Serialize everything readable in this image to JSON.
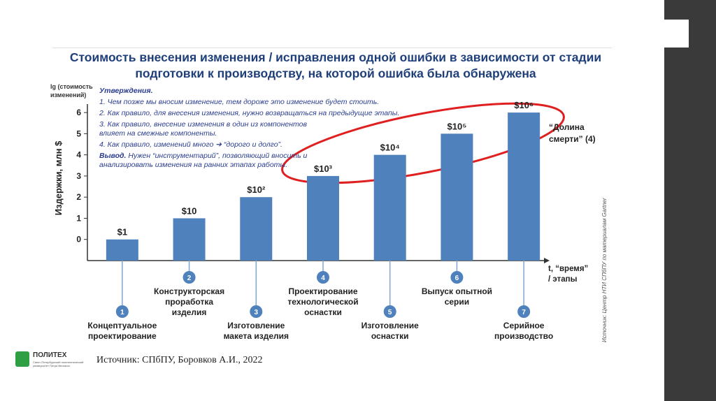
{
  "chart_data": {
    "type": "bar",
    "title": "Стоимость внесения изменения / исправления одной ошибки в зависимости от стадии подготовки к производству, на которой ошибка была обнаружена",
    "y_axis_label": "Издержки, млн $",
    "y_axis_note": "lg (стоимость изменений)",
    "x_axis_label": "t, “время” / этапы",
    "categories": [
      "Концептуальное проектирование",
      "Конструкторская проработка изделия",
      "Изготовление макета изделия",
      "Проектирование технологической оснастки",
      "Изготовление оснастки",
      "Выпуск опытной серии",
      "Серийное производство"
    ],
    "category_numbers": [
      1,
      2,
      3,
      4,
      5,
      6,
      7
    ],
    "values": [
      0,
      1,
      2,
      3,
      4,
      5,
      6
    ],
    "value_labels": [
      "$1",
      "$10",
      "$10²",
      "$10³",
      "$10⁴",
      "$10⁵",
      "$10⁶"
    ],
    "color": "#4f81bd",
    "ylim": [
      -1,
      6.4
    ],
    "yticks": [
      0,
      1,
      2,
      3,
      4,
      5,
      6
    ],
    "annotation": "“Долина смерти” (4)",
    "statements_heading": "Утверждения.",
    "statements": [
      "1. Чем позже мы вносим изменение, тем дороже это изменение будет стоить.",
      "2. Как правило, для внесения изменения, нужно возвращаться на предыдущие этапы.",
      "3. Как правило, внесение изменения в один из компонентов влияет на смежные компоненты.",
      "4. Как правило, изменений много ➔ “дорого и долго”."
    ],
    "conclusion_label": "Вывод.",
    "conclusion_text": "Нужен “инструментарий”, позволяющий вносить и анализировать изменения на ранних этапах работы.",
    "side_source": "Источник: Центр НТИ СПбПУ по материалам Gartner"
  },
  "footer": {
    "logo": "ПОЛИТЕХ",
    "logo_subtitle": "Санкт-Петербургский политехнический университет Петра Великого",
    "source": "Источник: СПбПУ, Боровков А.И., 2022"
  }
}
